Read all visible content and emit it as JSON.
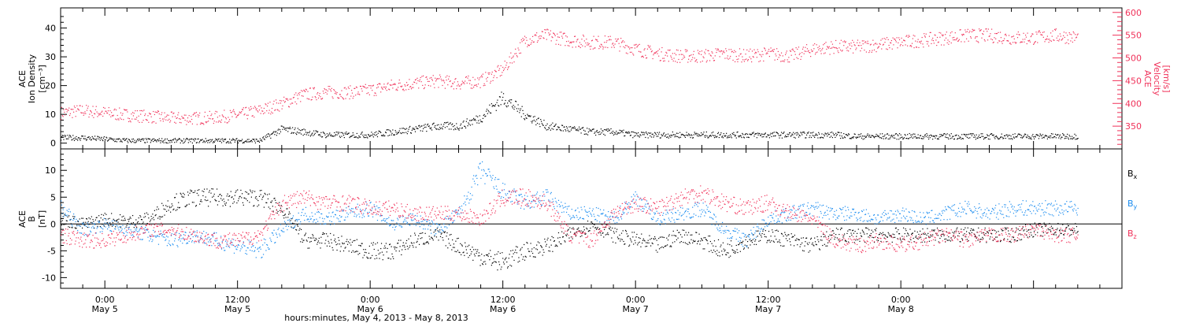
{
  "colors": {
    "black": "#000000",
    "pink": "#f0325a",
    "blue": "#1a8cf0"
  },
  "chart_data": [
    {
      "type": "scatter",
      "panel": "top",
      "ylabel_left": [
        "ACE",
        "Ion Density",
        "[cm⁻³]"
      ],
      "ylabel_right": [
        "ACE",
        "Velocity",
        "[km/s]"
      ],
      "ylim_left": [
        -2,
        47
      ],
      "ylim_right": [
        300,
        610
      ],
      "yticks_left": [
        "0",
        "10",
        "20",
        "30",
        "40"
      ],
      "yticks_right": [
        "350",
        "400",
        "450",
        "500",
        "550",
        "600"
      ],
      "xlim_hours": [
        -4,
        92
      ],
      "series": [
        {
          "axis": "left",
          "color": "#000000",
          "x": [
            -4,
            -2,
            0,
            2,
            4,
            6,
            8,
            10,
            12,
            14,
            16,
            18,
            20,
            22,
            24,
            26,
            28,
            30,
            32,
            34,
            36,
            38,
            40,
            42,
            44,
            46,
            48,
            50,
            52,
            54,
            56,
            58,
            60,
            62,
            64,
            66,
            68,
            70,
            72,
            74,
            76,
            78,
            80,
            82,
            84,
            86,
            88
          ],
          "y": [
            2,
            2,
            1.5,
            1,
            1,
            1,
            1,
            1,
            1,
            1,
            5,
            4,
            3,
            3,
            3,
            4,
            5,
            6,
            6,
            9,
            16,
            10,
            6,
            5,
            4,
            4,
            3,
            3,
            3,
            3,
            3,
            3,
            3,
            3,
            3,
            3,
            2.5,
            2.5,
            2.5,
            2.5,
            2.5,
            2.5,
            2.5,
            2.5,
            2.5,
            2.5,
            2.5
          ]
        },
        {
          "axis": "right",
          "color": "#f0325a",
          "x": [
            -4,
            -2,
            0,
            2,
            4,
            6,
            8,
            10,
            12,
            14,
            16,
            18,
            20,
            22,
            24,
            26,
            28,
            30,
            32,
            34,
            36,
            38,
            40,
            42,
            44,
            46,
            48,
            50,
            52,
            54,
            56,
            58,
            60,
            62,
            64,
            66,
            68,
            70,
            72,
            74,
            76,
            78,
            80,
            82,
            84,
            86,
            88
          ],
          "y": [
            380,
            385,
            380,
            375,
            372,
            368,
            368,
            370,
            375,
            385,
            400,
            420,
            425,
            425,
            430,
            440,
            445,
            450,
            445,
            450,
            475,
            540,
            550,
            540,
            535,
            535,
            520,
            510,
            505,
            505,
            510,
            505,
            510,
            505,
            520,
            525,
            525,
            530,
            535,
            540,
            545,
            550,
            550,
            545,
            545,
            550,
            545
          ]
        }
      ]
    },
    {
      "type": "scatter",
      "panel": "bottom",
      "ylabel": [
        "ACE",
        "B",
        "[nT]"
      ],
      "ylim": [
        -12,
        14
      ],
      "yticks": [
        "-10",
        "-5",
        "0",
        "5",
        "10"
      ],
      "xlim_hours": [
        -4,
        92
      ],
      "xticks": [
        {
          "hour": 0,
          "time": "0:00",
          "date": "May 5"
        },
        {
          "hour": 12,
          "time": "12:00",
          "date": "May 5"
        },
        {
          "hour": 24,
          "time": "0:00",
          "date": "May 6"
        },
        {
          "hour": 36,
          "time": "12:00",
          "date": "May 6"
        },
        {
          "hour": 48,
          "time": "0:00",
          "date": "May 7"
        },
        {
          "hour": 60,
          "time": "12:00",
          "date": "May 7"
        },
        {
          "hour": 72,
          "time": "0:00",
          "date": "May 8"
        }
      ],
      "xlabel": "hours:minutes, May  4, 2013 - May  8, 2013",
      "series": [
        {
          "name": "Bx",
          "color": "#000000",
          "x": [
            -4,
            -2,
            0,
            2,
            4,
            6,
            8,
            10,
            12,
            14,
            16,
            18,
            20,
            22,
            24,
            26,
            28,
            30,
            32,
            34,
            36,
            38,
            40,
            42,
            44,
            46,
            48,
            50,
            52,
            54,
            56,
            58,
            60,
            62,
            64,
            66,
            68,
            70,
            72,
            74,
            76,
            78,
            80,
            82,
            84,
            86,
            88
          ],
          "y": [
            1,
            0,
            1,
            0.5,
            1,
            4,
            5,
            5,
            5,
            5,
            3,
            -3,
            -3,
            -4,
            -5,
            -5,
            -3,
            -2,
            -4,
            -6,
            -7,
            -5,
            -4,
            -2,
            0,
            -2,
            -3,
            -4,
            -2,
            -3,
            -5,
            -3,
            -2,
            -3,
            -4,
            -2,
            -2,
            -2,
            -2,
            -2,
            -2,
            -2,
            -2,
            -2,
            -1,
            -1,
            -1
          ]
        },
        {
          "name": "By",
          "color": "#1a8cf0",
          "x": [
            -4,
            -2,
            0,
            2,
            4,
            6,
            8,
            10,
            12,
            14,
            16,
            18,
            20,
            22,
            24,
            26,
            28,
            30,
            32,
            34,
            36,
            38,
            40,
            42,
            44,
            46,
            48,
            50,
            52,
            54,
            56,
            58,
            60,
            62,
            64,
            66,
            68,
            70,
            72,
            74,
            76,
            78,
            80,
            82,
            84,
            86,
            88
          ],
          "y": [
            3,
            -1,
            0,
            -1,
            -2,
            -3,
            -2,
            -3,
            -4,
            -5,
            -1,
            2,
            1,
            2,
            3,
            0,
            1,
            -1,
            2,
            10,
            6,
            4,
            5,
            2,
            2,
            1,
            5,
            1,
            2,
            3,
            -1,
            -3,
            1,
            2,
            3,
            2,
            2,
            1,
            2,
            1,
            2,
            3,
            2,
            3,
            3,
            3,
            3
          ]
        },
        {
          "name": "Bz",
          "color": "#f0325a",
          "x": [
            -4,
            -2,
            0,
            2,
            4,
            6,
            8,
            10,
            12,
            14,
            16,
            18,
            20,
            22,
            24,
            26,
            28,
            30,
            32,
            34,
            36,
            38,
            40,
            42,
            44,
            46,
            48,
            50,
            52,
            54,
            56,
            58,
            60,
            62,
            64,
            66,
            68,
            70,
            72,
            74,
            76,
            78,
            80,
            82,
            84,
            86,
            88
          ],
          "y": [
            -2,
            -3,
            -3,
            -2,
            -1,
            -1,
            -2,
            -3,
            -3,
            -2,
            4,
            5,
            4,
            4,
            3,
            3,
            2,
            2,
            2,
            1,
            5,
            5,
            4,
            -2,
            -3,
            2,
            4,
            3,
            5,
            6,
            4,
            3,
            4,
            2,
            1,
            -3,
            -4,
            -3,
            -4,
            -3,
            -2,
            -3,
            -2,
            -2,
            -1,
            -2,
            -2
          ]
        }
      ]
    }
  ]
}
